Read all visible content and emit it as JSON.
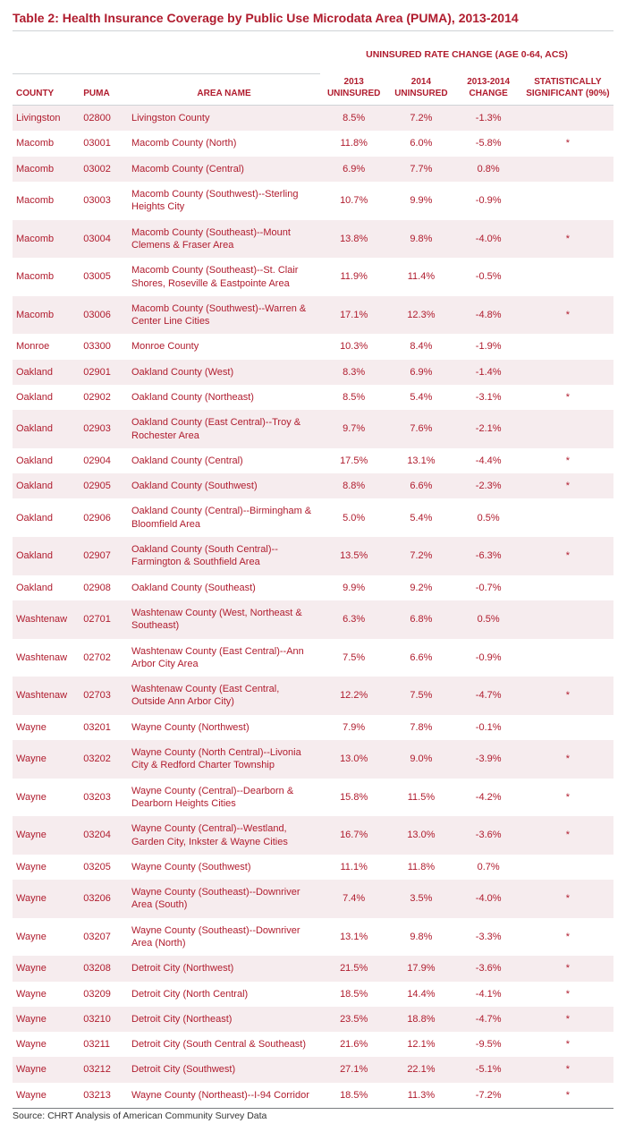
{
  "title": "Table 2: Health Insurance Coverage by Public Use Microdata Area (PUMA), 2013-2014",
  "super_header": "UNINSURED RATE CHANGE (AGE 0-64, ACS)",
  "columns": {
    "county": "COUNTY",
    "puma": "PUMA",
    "area": "AREA NAME",
    "y2013": "2013 UNINSURED",
    "y2014": "2014 UNINSURED",
    "change": "2013-2014 CHANGE",
    "sig": "STATISTICALLY SIGNIFICANT (90%)"
  },
  "source": "Source: CHRT Analysis of American Community Survey Data",
  "rows": [
    {
      "county": "Livingston",
      "puma": "02800",
      "area": "Livingston County",
      "y2013": "8.5%",
      "y2014": "7.2%",
      "change": "-1.3%",
      "sig": ""
    },
    {
      "county": "Macomb",
      "puma": "03001",
      "area": "Macomb County (North)",
      "y2013": "11.8%",
      "y2014": "6.0%",
      "change": "-5.8%",
      "sig": "*"
    },
    {
      "county": "Macomb",
      "puma": "03002",
      "area": "Macomb County (Central)",
      "y2013": "6.9%",
      "y2014": "7.7%",
      "change": "0.8%",
      "sig": ""
    },
    {
      "county": "Macomb",
      "puma": "03003",
      "area": "Macomb County (Southwest)--Sterling Heights City",
      "y2013": "10.7%",
      "y2014": "9.9%",
      "change": "-0.9%",
      "sig": ""
    },
    {
      "county": "Macomb",
      "puma": "03004",
      "area": "Macomb County (Southeast)--Mount Clemens & Fraser Area",
      "y2013": "13.8%",
      "y2014": "9.8%",
      "change": "-4.0%",
      "sig": "*"
    },
    {
      "county": "Macomb",
      "puma": "03005",
      "area": "Macomb County (Southeast)--St. Clair Shores, Roseville & Eastpointe Area",
      "y2013": "11.9%",
      "y2014": "11.4%",
      "change": "-0.5%",
      "sig": ""
    },
    {
      "county": "Macomb",
      "puma": "03006",
      "area": "Macomb County (Southwest)--Warren & Center Line Cities",
      "y2013": "17.1%",
      "y2014": "12.3%",
      "change": "-4.8%",
      "sig": "*"
    },
    {
      "county": "Monroe",
      "puma": "03300",
      "area": "Monroe County",
      "y2013": "10.3%",
      "y2014": "8.4%",
      "change": "-1.9%",
      "sig": ""
    },
    {
      "county": "Oakland",
      "puma": "02901",
      "area": "Oakland County (West)",
      "y2013": "8.3%",
      "y2014": "6.9%",
      "change": "-1.4%",
      "sig": ""
    },
    {
      "county": "Oakland",
      "puma": "02902",
      "area": "Oakland County (Northeast)",
      "y2013": "8.5%",
      "y2014": "5.4%",
      "change": "-3.1%",
      "sig": "*"
    },
    {
      "county": "Oakland",
      "puma": "02903",
      "area": "Oakland County (East Central)--Troy & Rochester Area",
      "y2013": "9.7%",
      "y2014": "7.6%",
      "change": "-2.1%",
      "sig": ""
    },
    {
      "county": "Oakland",
      "puma": "02904",
      "area": "Oakland County (Central)",
      "y2013": "17.5%",
      "y2014": "13.1%",
      "change": "-4.4%",
      "sig": "*"
    },
    {
      "county": "Oakland",
      "puma": "02905",
      "area": "Oakland County (Southwest)",
      "y2013": "8.8%",
      "y2014": "6.6%",
      "change": "-2.3%",
      "sig": "*"
    },
    {
      "county": "Oakland",
      "puma": "02906",
      "area": "Oakland County (Central)--Birmingham & Bloomfield Area",
      "y2013": "5.0%",
      "y2014": "5.4%",
      "change": "0.5%",
      "sig": ""
    },
    {
      "county": "Oakland",
      "puma": "02907",
      "area": "Oakland County (South Central)--Farmington & Southfield Area",
      "y2013": "13.5%",
      "y2014": "7.2%",
      "change": "-6.3%",
      "sig": "*"
    },
    {
      "county": "Oakland",
      "puma": "02908",
      "area": "Oakland County (Southeast)",
      "y2013": "9.9%",
      "y2014": "9.2%",
      "change": "-0.7%",
      "sig": ""
    },
    {
      "county": "Washtenaw",
      "puma": "02701",
      "area": "Washtenaw County (West, Northeast & Southeast)",
      "y2013": "6.3%",
      "y2014": "6.8%",
      "change": "0.5%",
      "sig": ""
    },
    {
      "county": "Washtenaw",
      "puma": "02702",
      "area": "Washtenaw County (East Central)--Ann Arbor City Area",
      "y2013": "7.5%",
      "y2014": "6.6%",
      "change": "-0.9%",
      "sig": ""
    },
    {
      "county": "Washtenaw",
      "puma": "02703",
      "area": "Washtenaw County (East Central, Outside Ann Arbor City)",
      "y2013": "12.2%",
      "y2014": "7.5%",
      "change": "-4.7%",
      "sig": "*"
    },
    {
      "county": "Wayne",
      "puma": "03201",
      "area": "Wayne County (Northwest)",
      "y2013": "7.9%",
      "y2014": "7.8%",
      "change": "-0.1%",
      "sig": ""
    },
    {
      "county": "Wayne",
      "puma": "03202",
      "area": "Wayne County (North Central)--Livonia City & Redford Charter Township",
      "y2013": "13.0%",
      "y2014": "9.0%",
      "change": "-3.9%",
      "sig": "*"
    },
    {
      "county": "Wayne",
      "puma": "03203",
      "area": "Wayne County (Central)--Dearborn & Dearborn Heights Cities",
      "y2013": "15.8%",
      "y2014": "11.5%",
      "change": "-4.2%",
      "sig": "*"
    },
    {
      "county": "Wayne",
      "puma": "03204",
      "area": "Wayne County (Central)--Westland, Garden City, Inkster & Wayne Cities",
      "y2013": "16.7%",
      "y2014": "13.0%",
      "change": "-3.6%",
      "sig": "*"
    },
    {
      "county": "Wayne",
      "puma": "03205",
      "area": "Wayne County (Southwest)",
      "y2013": "11.1%",
      "y2014": "11.8%",
      "change": "0.7%",
      "sig": ""
    },
    {
      "county": "Wayne",
      "puma": "03206",
      "area": "Wayne County (Southeast)--Downriver Area (South)",
      "y2013": "7.4%",
      "y2014": "3.5%",
      "change": "-4.0%",
      "sig": "*"
    },
    {
      "county": "Wayne",
      "puma": "03207",
      "area": "Wayne County (Southeast)--Downriver Area (North)",
      "y2013": "13.1%",
      "y2014": "9.8%",
      "change": "-3.3%",
      "sig": "*"
    },
    {
      "county": "Wayne",
      "puma": "03208",
      "area": "Detroit City (Northwest)",
      "y2013": "21.5%",
      "y2014": "17.9%",
      "change": "-3.6%",
      "sig": "*"
    },
    {
      "county": "Wayne",
      "puma": "03209",
      "area": "Detroit City (North Central)",
      "y2013": "18.5%",
      "y2014": "14.4%",
      "change": "-4.1%",
      "sig": "*"
    },
    {
      "county": "Wayne",
      "puma": "03210",
      "area": "Detroit City (Northeast)",
      "y2013": "23.5%",
      "y2014": "18.8%",
      "change": "-4.7%",
      "sig": "*"
    },
    {
      "county": "Wayne",
      "puma": "03211",
      "area": "Detroit City (South Central & Southeast)",
      "y2013": "21.6%",
      "y2014": "12.1%",
      "change": "-9.5%",
      "sig": "*"
    },
    {
      "county": "Wayne",
      "puma": "03212",
      "area": "Detroit City (Southwest)",
      "y2013": "27.1%",
      "y2014": "22.1%",
      "change": "-5.1%",
      "sig": "*"
    },
    {
      "county": "Wayne",
      "puma": "03213",
      "area": "Wayne County (Northeast)--I-94 Corridor",
      "y2013": "18.5%",
      "y2014": "11.3%",
      "change": "-7.2%",
      "sig": "*"
    }
  ],
  "colors": {
    "accent": "#b01c2e",
    "stripe": "#f6ecee",
    "border": "#cfd3d6",
    "text": "#333333",
    "background": "#ffffff"
  }
}
